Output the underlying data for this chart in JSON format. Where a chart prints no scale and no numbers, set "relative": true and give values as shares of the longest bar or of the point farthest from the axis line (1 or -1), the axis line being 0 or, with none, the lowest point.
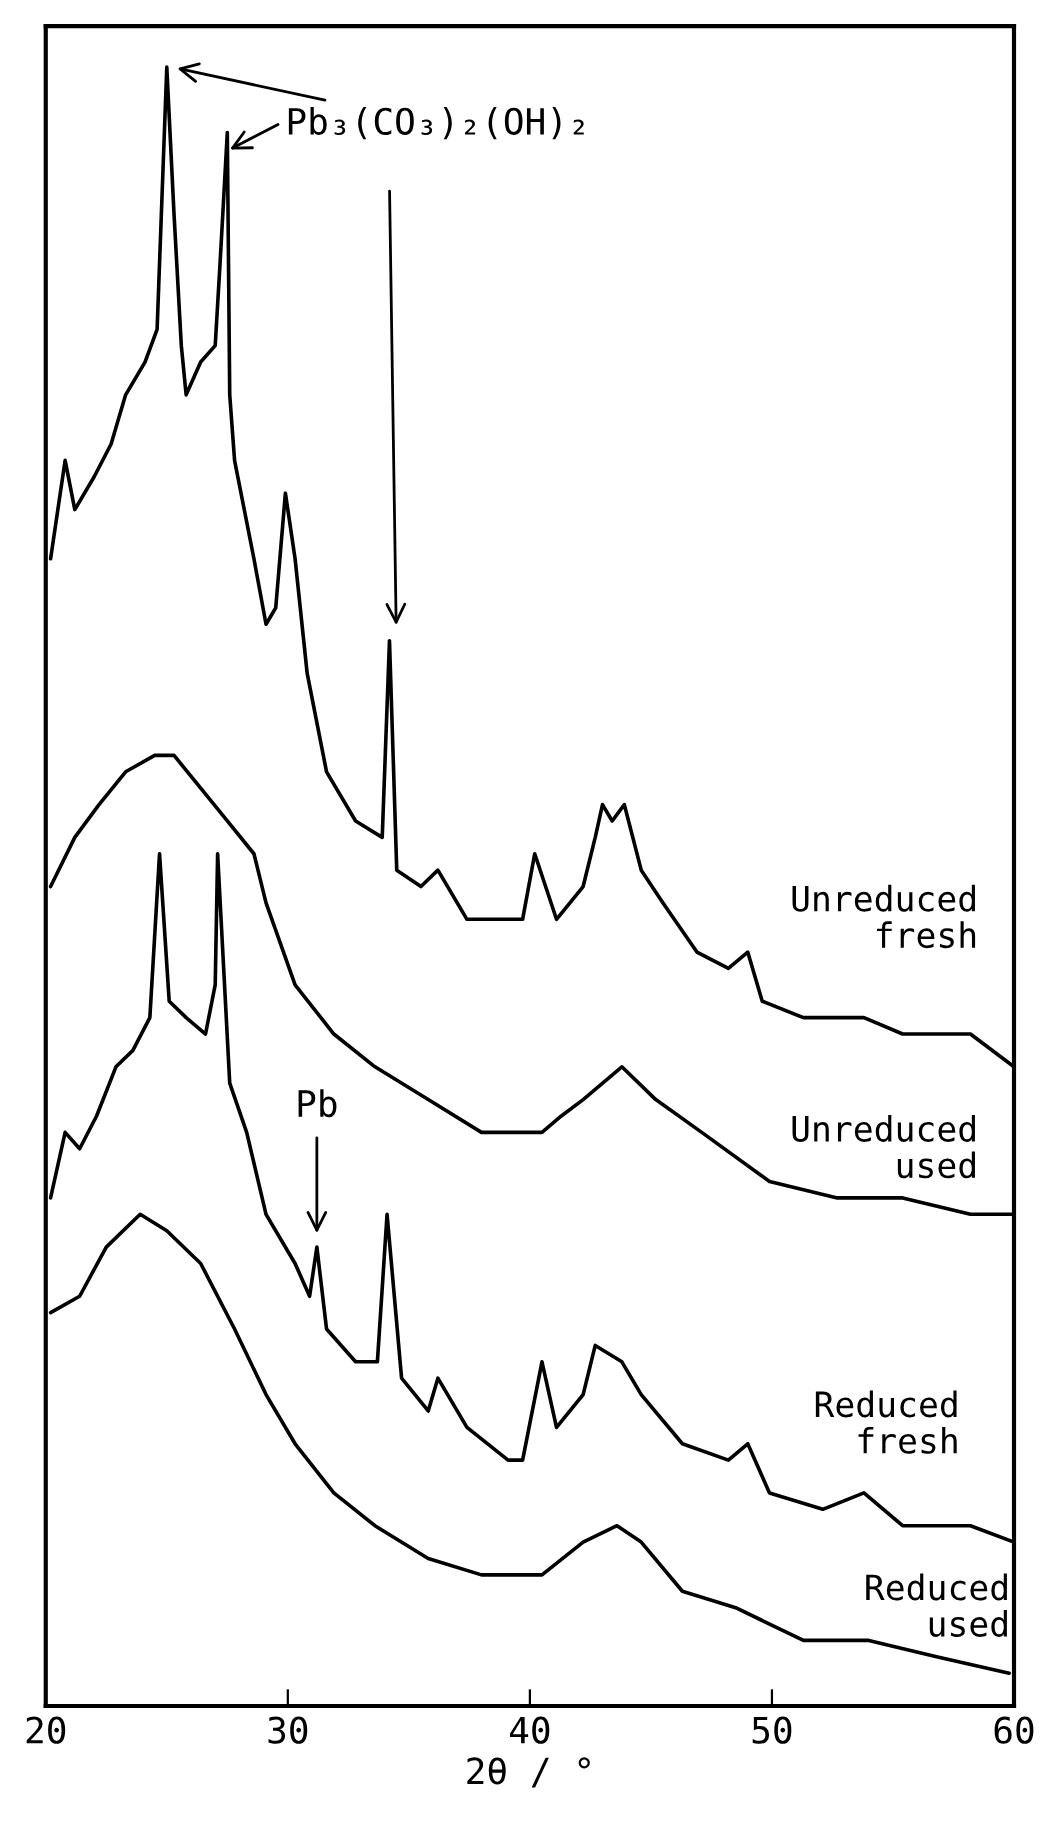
{
  "chart_data": {
    "type": "line",
    "relative": true,
    "xlabel": "2θ / °",
    "xlim": [
      20,
      60
    ],
    "xticks": [
      20,
      30,
      40,
      50,
      60
    ],
    "tick_labels": "x",
    "series": [
      {
        "name": "Unreduced\nfresh",
        "color": "#000000",
        "x": [
          20.2,
          20.8,
          21.2,
          22.0,
          22.7,
          23.3,
          24.1,
          24.6,
          25.0,
          25.3,
          25.6,
          25.8,
          26.4,
          27.0,
          27.2,
          27.5,
          27.6,
          27.8,
          28.6,
          29.1,
          29.5,
          29.9,
          30.3,
          30.8,
          31.6,
          32.8,
          33.9,
          34.2,
          34.5,
          35.5,
          36.2,
          37.4,
          39.7,
          40.2,
          41.1,
          42.2,
          42.7,
          43.0,
          43.4,
          43.9,
          44.6,
          45.5,
          46.9,
          48.2,
          49.0,
          49.6,
          51.3,
          53.8,
          55.4,
          58.2,
          60.0
        ],
        "values": [
          0.7,
          0.76,
          0.73,
          0.75,
          0.77,
          0.8,
          0.82,
          0.84,
          1.0,
          0.91,
          0.83,
          0.8,
          0.82,
          0.83,
          0.88,
          0.96,
          0.8,
          0.76,
          0.7,
          0.66,
          0.67,
          0.74,
          0.7,
          0.63,
          0.57,
          0.54,
          0.53,
          0.65,
          0.51,
          0.5,
          0.51,
          0.48,
          0.48,
          0.52,
          0.48,
          0.5,
          0.53,
          0.55,
          0.54,
          0.55,
          0.51,
          0.49,
          0.46,
          0.45,
          0.46,
          0.43,
          0.42,
          0.42,
          0.41,
          0.41,
          0.39
        ]
      },
      {
        "name": "Unreduced\nused",
        "color": "#000000",
        "x": [
          20.2,
          21.2,
          22.2,
          23.3,
          24.5,
          25.3,
          26.4,
          27.5,
          28.6,
          29.1,
          30.3,
          31.9,
          33.6,
          35.8,
          38.0,
          39.7,
          40.5,
          41.3,
          42.2,
          43.8,
          45.2,
          47.1,
          49.9,
          52.7,
          55.4,
          58.2,
          60.0
        ],
        "values": [
          0.5,
          0.53,
          0.55,
          0.57,
          0.58,
          0.58,
          0.56,
          0.54,
          0.52,
          0.49,
          0.44,
          0.41,
          0.39,
          0.37,
          0.35,
          0.35,
          0.35,
          0.36,
          0.37,
          0.39,
          0.37,
          0.35,
          0.32,
          0.31,
          0.31,
          0.3,
          0.3
        ]
      },
      {
        "name": "Reduced\nfresh",
        "color": "#000000",
        "x": [
          20.2,
          20.8,
          21.4,
          22.1,
          22.9,
          23.6,
          24.3,
          24.7,
          25.1,
          25.8,
          26.6,
          27.0,
          27.1,
          27.6,
          28.3,
          29.1,
          30.3,
          30.9,
          31.2,
          31.6,
          32.8,
          33.7,
          34.1,
          34.7,
          35.8,
          36.2,
          37.4,
          39.1,
          39.7,
          40.5,
          41.1,
          42.2,
          42.7,
          43.8,
          44.6,
          46.3,
          48.2,
          49.0,
          49.9,
          52.1,
          53.8,
          55.4,
          58.2,
          60.0
        ],
        "values": [
          0.31,
          0.35,
          0.34,
          0.36,
          0.39,
          0.4,
          0.42,
          0.52,
          0.43,
          0.42,
          0.41,
          0.44,
          0.52,
          0.38,
          0.35,
          0.3,
          0.27,
          0.25,
          0.28,
          0.23,
          0.21,
          0.21,
          0.3,
          0.2,
          0.18,
          0.2,
          0.17,
          0.15,
          0.15,
          0.21,
          0.17,
          0.19,
          0.22,
          0.21,
          0.19,
          0.16,
          0.15,
          0.16,
          0.13,
          0.12,
          0.13,
          0.11,
          0.11,
          0.1
        ]
      },
      {
        "name": "Reduced\nused",
        "color": "#000000",
        "x": [
          20.2,
          21.4,
          22.5,
          23.9,
          25.0,
          26.4,
          27.8,
          29.1,
          30.3,
          31.9,
          33.6,
          35.8,
          38.0,
          39.7,
          40.5,
          42.2,
          43.6,
          44.6,
          46.3,
          48.5,
          51.3,
          54.0,
          56.8,
          59.8
        ],
        "values": [
          0.24,
          0.25,
          0.28,
          0.3,
          0.29,
          0.27,
          0.23,
          0.19,
          0.16,
          0.13,
          0.11,
          0.09,
          0.08,
          0.08,
          0.08,
          0.1,
          0.11,
          0.1,
          0.07,
          0.06,
          0.04,
          0.04,
          0.03,
          0.02
        ]
      }
    ],
    "annotations": [
      {
        "text": "Pb₃(CO₃)₂(OH)₂",
        "x": 25.0,
        "y": 1.0
      },
      {
        "text": "Pb",
        "x": 31.2,
        "y": 0.28
      }
    ]
  }
}
